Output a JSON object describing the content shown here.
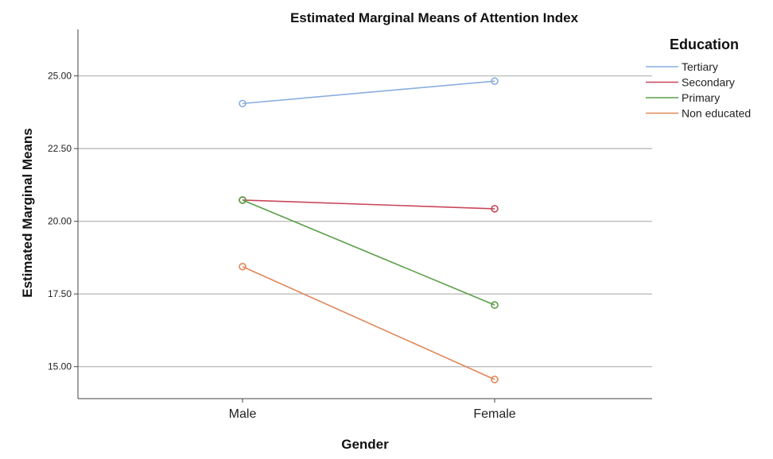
{
  "chart_data": {
    "type": "line",
    "title": "Estimated Marginal Means of Attention Index",
    "xlabel": "Gender",
    "ylabel": "Estimated Marginal Means",
    "categories": [
      "Male",
      "Female"
    ],
    "ylim": [
      13.9,
      26.6
    ],
    "yticks": [
      "15.00",
      "17.50",
      "20.00",
      "22.50",
      "25.00"
    ],
    "grid": true,
    "legend": {
      "title": "Education",
      "position": "top-right"
    },
    "series": [
      {
        "name": "Tertiary",
        "values": [
          24.05,
          24.82
        ],
        "color": "#8aaee0"
      },
      {
        "name": "Secondary",
        "values": [
          20.73,
          20.43
        ],
        "color": "#c8475a"
      },
      {
        "name": "Primary",
        "values": [
          20.73,
          17.12
        ],
        "color": "#5a9e47"
      },
      {
        "name": "Non educated",
        "values": [
          18.44,
          14.56
        ],
        "color": "#e0875a"
      }
    ]
  }
}
